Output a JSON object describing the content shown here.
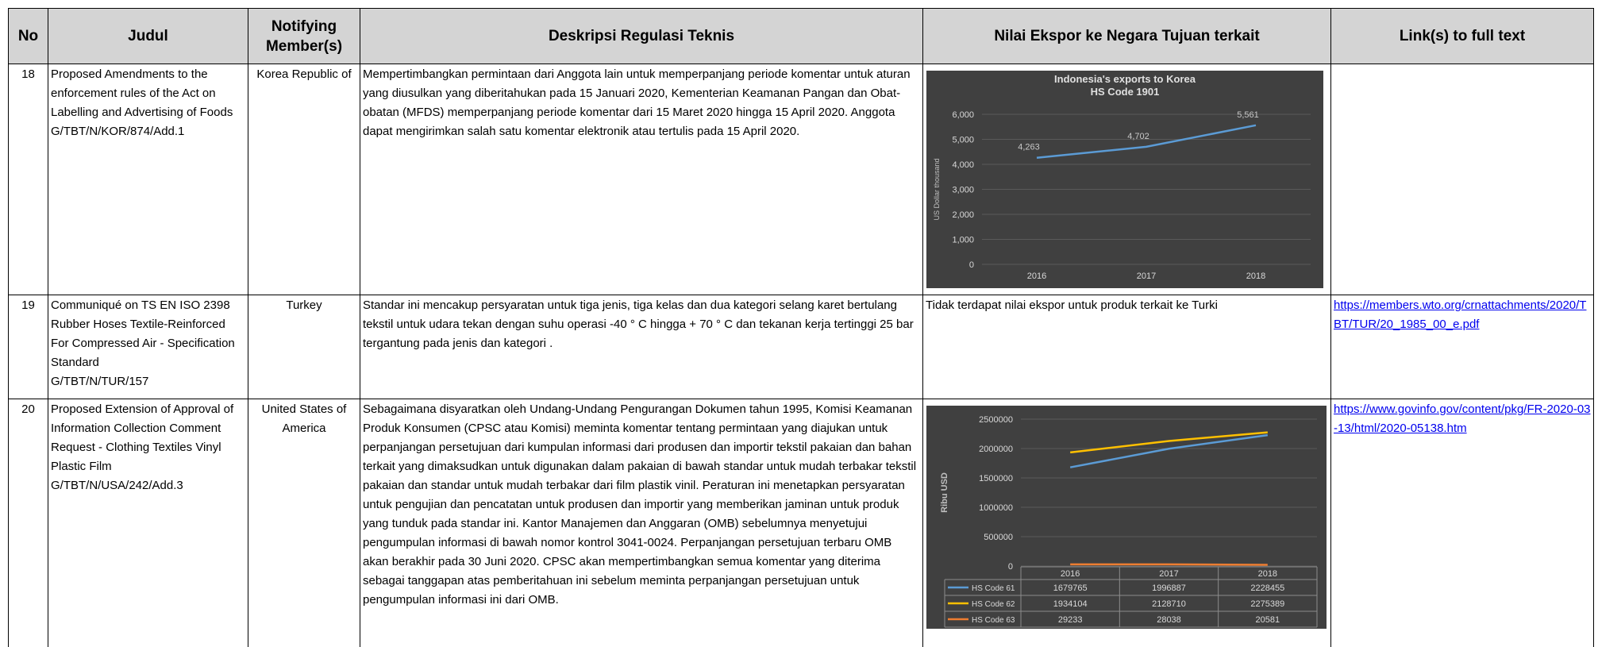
{
  "table": {
    "headers": [
      "No",
      "Judul",
      "Notifying Member(s)",
      "Deskripsi Regulasi Teknis",
      "Nilai Ekspor ke Negara Tujuan terkait",
      "Link(s) to full text"
    ],
    "rows": [
      {
        "no": "18",
        "judul": {
          "title": "Proposed Amendments to the enforcement rules of the Act on Labelling and Advertising of Foods",
          "code": "G/TBT/N/KOR/874/Add.1"
        },
        "member": "Korea Republic of",
        "deskripsi": "Mempertimbangkan permintaan dari Anggota lain untuk memperpanjang periode komentar untuk aturan yang diusulkan yang diberitahukan pada 15 Januari 2020, Kementerian Keamanan Pangan dan Obat-obatan (MFDS) memperpanjang periode komentar dari 15 Maret 2020 hingga 15 April 2020. Anggota dapat mengirimkan salah satu komentar elektronik atau tertulis pada 15 April 2020.",
        "export_chart": {
          "type": "line",
          "title": "Indonesia's exports to Korea",
          "subtitle": "HS Code 1901",
          "y_label": "US Dollar thousand",
          "categories": [
            "2016",
            "2017",
            "2018"
          ],
          "series": [
            {
              "color": "#5b9bd5",
              "values": [
                4263,
                4702,
                5561
              ],
              "value_labels": [
                "4,263",
                "4,702",
                "5,561"
              ]
            }
          ],
          "ylim": [
            0,
            6000
          ],
          "yticks": [
            0,
            {
              "value": 1000,
              "label": "1,000"
            },
            {
              "value": 2000,
              "label": "2,000"
            },
            {
              "value": 3000,
              "label": "3,000"
            },
            {
              "value": 4000,
              "label": "4,000"
            },
            {
              "value": 5000,
              "label": "5,000"
            },
            {
              "value": 6000,
              "label": "6,000"
            }
          ],
          "grid": true
        }
      },
      {
        "no": "19",
        "judul": {
          "title": "Communiqué on TS EN ISO 2398 Rubber Hoses Textile-Reinforced For Compressed Air - Specification Standard",
          "code": "G/TBT/N/TUR/157"
        },
        "member": "Turkey",
        "deskripsi": "Standar ini mencakup persyaratan untuk tiga jenis, tiga kelas dan dua kategori selang karet bertulang tekstil untuk udara tekan dengan suhu operasi -40 ° C hingga + 70 ° C dan tekanan kerja tertinggi 25 bar tergantung pada jenis dan kategori .",
        "export_note": "Tidak terdapat nilai ekspor untuk produk terkait ke Turki",
        "link": "https://members.wto.org/crnattachments/2020/TBT/TUR/20_1985_00_e.pdf"
      },
      {
        "no": "20",
        "judul": {
          "title": "Proposed Extension of Approval of Information Collection Comment Request - Clothing Textiles Vinyl Plastic Film",
          "code": "G/TBT/N/USA/242/Add.3"
        },
        "member": "United States of America",
        "deskripsi": "Sebagaimana disyaratkan oleh Undang-Undang Pengurangan Dokumen tahun 1995, Komisi Keamanan Produk Konsumen (CPSC atau Komisi) meminta komentar tentang permintaan yang diajukan untuk perpanjangan persetujuan dari kumpulan informasi dari produsen dan importir tekstil pakaian dan bahan terkait yang dimaksudkan untuk digunakan dalam pakaian di bawah standar untuk mudah terbakar tekstil pakaian dan standar untuk mudah terbakar dari film plastik vinil. Peraturan ini menetapkan persyaratan untuk pengujian dan pencatatan untuk produsen dan importir yang memberikan jaminan untuk produk yang tunduk pada standar ini. Kantor Manajemen dan Anggaran (OMB) sebelumnya menyetujui pengumpulan informasi di bawah nomor kontrol 3041-0024. Perpanjangan persetujuan terbaru OMB akan berakhir pada 30 Juni 2020. CPSC akan mempertimbangkan semua komentar yang diterima sebagai tanggapan atas pemberitahuan ini sebelum meminta perpanjangan persetujuan untuk pengumpulan informasi ini dari OMB.",
        "export_chart": {
          "type": "line",
          "y_label": "Ribu USD",
          "categories": [
            "2016",
            "2017",
            "2018"
          ],
          "series": [
            {
              "name": "HS Code 61",
              "color": "#5b9bd5",
              "values": [
                1679765,
                1996887,
                2228455
              ]
            },
            {
              "name": "HS Code 62",
              "color": "#ffc000",
              "values": [
                1934104,
                2128710,
                2275389
              ]
            },
            {
              "name": "HS Code 63",
              "color": "#ed7d31",
              "values": [
                29233,
                28038,
                20581
              ]
            }
          ],
          "ylim": [
            0,
            2500000
          ],
          "yticks": [
            0,
            500000,
            1000000,
            1500000,
            2000000,
            2500000
          ],
          "grid": true,
          "data_table": true
        },
        "link": "https://www.govinfo.gov/content/pkg/FR-2020-03-13/html/2020-05138.htm"
      }
    ]
  }
}
